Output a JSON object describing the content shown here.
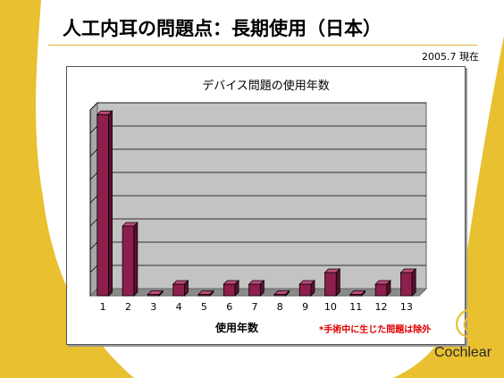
{
  "slide": {
    "title": "人工内耳の問題点：長期使用（日本）",
    "date_label": "2005.7 現在",
    "footnote": "*手術中に生じた問題は除外",
    "brand": "Cochlear"
  },
  "colors": {
    "accent": "#e8c030",
    "bar": "#8e1f4c",
    "plot_bg": "#c3c3c3"
  },
  "icons": {
    "brand_logo": "cochlear-swirl-logo"
  },
  "chart_data": {
    "type": "bar",
    "title": "デバイス問題の使用年数",
    "xlabel": "使用年数",
    "ylabel": "",
    "categories": [
      "1",
      "2",
      "3",
      "4",
      "5",
      "6",
      "7",
      "8",
      "9",
      "10",
      "11",
      "12",
      "13"
    ],
    "values": [
      7.8,
      3,
      0,
      0.5,
      0,
      0.5,
      0.5,
      0,
      0.5,
      1,
      0,
      0.5,
      1
    ],
    "ylim": [
      0,
      8
    ],
    "grid": true,
    "legend": "none"
  }
}
